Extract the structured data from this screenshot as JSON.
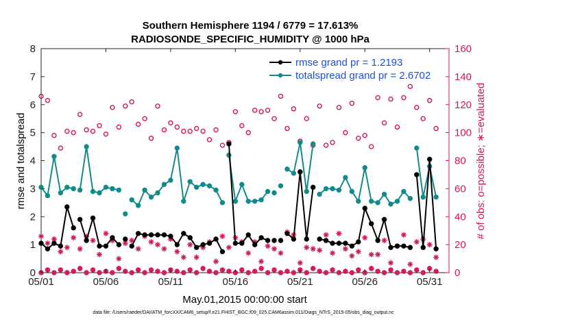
{
  "chart_data": {
    "type": "line",
    "title_line1": "Southern Hemisphere 1194 / 6779 = 17.613%",
    "title_line2": "RADIOSONDE_SPECIFIC_HUMIDITY @ 1000 hPa",
    "xlabel": "May.01,2015 00:00:00 start",
    "ylabel_left": "rmse and totalspread",
    "ylabel_right": "# of obs: o=possible; ∗=evaluated",
    "footer": "data file: /Users/raeder/DAI/ATM_forcXX/CAM6_setup/f.e21.FHIST_BGC.f09_025.CAM6assim.011/Diags_NTrS_2015-05/obs_diag_output.nc",
    "xlim": [
      0,
      31.5
    ],
    "ylim_left": [
      0,
      8
    ],
    "ylim_right": [
      0,
      160
    ],
    "x_ticks": [
      0,
      5,
      10,
      15,
      20,
      25,
      30
    ],
    "x_tick_labels": [
      "05/01",
      "05/06",
      "05/11",
      "05/16",
      "05/21",
      "05/26",
      "05/31"
    ],
    "y_ticks_left": [
      0,
      1,
      2,
      3,
      4,
      5,
      6,
      7,
      8
    ],
    "y_tick_labels_left": [
      "0",
      "1",
      "2",
      "3",
      "4",
      "5",
      "6",
      "7",
      "8"
    ],
    "y_ticks_right": [
      0,
      20,
      40,
      60,
      80,
      100,
      120,
      140,
      160
    ],
    "y_tick_labels_right": [
      "0",
      "20",
      "40",
      "60",
      "80",
      "100",
      "120",
      "140",
      "160"
    ],
    "colors": {
      "rmse": "#000000",
      "spread": "#138a8a",
      "obs": "#d4145a",
      "legend_text": "#1c4fd8"
    },
    "series": [
      {
        "name": "rmse grand pr = 1.2193",
        "axis": "left",
        "x": [
          0,
          0.5,
          1,
          1.5,
          2,
          2.5,
          3,
          3.5,
          4,
          4.5,
          5,
          5.5,
          6,
          6.5,
          7,
          7.5,
          8,
          8.5,
          9,
          9.5,
          10,
          10.5,
          11,
          11.5,
          12,
          12.5,
          13,
          13.5,
          14,
          14.5,
          15,
          15.5,
          16,
          16.5,
          17,
          17.5,
          18,
          18.5,
          19,
          19.5,
          20,
          20.5,
          21,
          21.5,
          22,
          22.5,
          23,
          23.5,
          24,
          24.5,
          25,
          25.5,
          26,
          26.5,
          27,
          27.5,
          28,
          28.5,
          29,
          29.5,
          30,
          30.5
        ],
        "values": [
          1.05,
          0.85,
          1.05,
          0.95,
          2.35,
          1.6,
          1.9,
          1.15,
          1.95,
          0.95,
          0.95,
          1.25,
          1.0,
          1.2,
          0.95,
          1.4,
          1.35,
          1.35,
          1.35,
          1.35,
          1.3,
          1.0,
          1.4,
          1.25,
          0.9,
          1.0,
          1.05,
          1.2,
          0.75,
          4.6,
          1.05,
          1.05,
          1.35,
          1.0,
          1.25,
          1.15,
          1.15,
          1.15,
          1.4,
          1.2,
          3.6,
          1.2,
          3.05,
          1.2,
          1.15,
          1.05,
          1.05,
          1.05,
          0.95,
          1.1,
          2.3,
          1.75,
          1.15,
          1.9,
          0.9,
          0.95,
          0.95,
          0.9,
          3.5,
          0.9,
          4.05,
          0.85
        ],
        "segments": [
          [
            0,
            6
          ],
          [
            6,
            13
          ],
          [
            14,
            29
          ],
          [
            29,
            36
          ],
          [
            38,
            43
          ],
          [
            43,
            58
          ],
          [
            58,
            62
          ]
        ]
      },
      {
        "name": "totalspread grand pr = 2.6702",
        "axis": "left",
        "x": [
          0,
          0.5,
          1,
          1.5,
          2,
          2.5,
          3,
          3.5,
          4,
          4.5,
          5,
          5.5,
          6,
          6.5,
          7,
          7.5,
          8,
          8.5,
          9,
          9.5,
          10,
          10.5,
          11,
          11.5,
          12,
          12.5,
          13,
          13.5,
          14,
          14.5,
          15,
          15.5,
          16,
          16.5,
          17,
          17.5,
          18,
          18.5,
          19,
          19.5,
          20,
          20.5,
          21,
          21.5,
          22,
          22.5,
          23,
          23.5,
          24,
          24.5,
          25,
          25.5,
          26,
          26.5,
          27,
          27.5,
          28,
          28.5,
          29,
          29.5,
          30,
          30.5
        ],
        "values": [
          3.05,
          2.75,
          4.15,
          2.85,
          3.05,
          3.0,
          2.95,
          4.5,
          2.9,
          2.85,
          3.05,
          3.0,
          2.95,
          2.1,
          2.6,
          2.4,
          2.95,
          2.7,
          2.85,
          3.15,
          3.3,
          4.45,
          2.55,
          3.25,
          3.05,
          3.15,
          3.1,
          2.95,
          2.5,
          4.2,
          2.55,
          3.15,
          2.55,
          2.55,
          2.6,
          2.9,
          2.85,
          3.1,
          3.7,
          3.55,
          4.65,
          2.9,
          4.6,
          2.8,
          3.0,
          3.0,
          2.95,
          3.4,
          2.9,
          2.55,
          3.75,
          2.55,
          2.5,
          2.8,
          2.45,
          2.55,
          2.9,
          2.65,
          4.45,
          2.7,
          3.8,
          2.7
        ],
        "segments": [
          [
            0,
            6
          ],
          [
            6,
            13
          ],
          [
            14,
            29
          ],
          [
            29,
            36
          ],
          [
            38,
            43
          ],
          [
            43,
            58
          ],
          [
            58,
            62
          ]
        ]
      },
      {
        "name": "obs possible",
        "axis": "right",
        "marker": "o",
        "x": [
          0,
          0.5,
          1,
          1.5,
          2,
          2.5,
          3,
          3.5,
          4,
          4.5,
          5,
          5.5,
          6,
          6.5,
          7,
          7.5,
          8,
          8.5,
          9,
          9.5,
          10,
          10.5,
          11,
          11.5,
          12,
          12.5,
          13,
          13.5,
          14,
          14.5,
          15,
          15.5,
          16,
          16.5,
          17,
          17.5,
          18,
          18.5,
          19,
          19.5,
          20,
          20.5,
          21,
          21.5,
          22,
          22.5,
          23,
          23.5,
          24,
          24.5,
          25,
          25.5,
          26,
          26.5,
          27,
          27.5,
          28,
          28.5,
          29,
          29.5,
          30,
          30.5
        ],
        "values": [
          126,
          123,
          98,
          89,
          101,
          100,
          113,
          102,
          101,
          105,
          99,
          118,
          104,
          119,
          122,
          106,
          110,
          96,
          119,
          102,
          107,
          104,
          101,
          101,
          103,
          101,
          95,
          102,
          91,
          93,
          115,
          105,
          100,
          116,
          115,
          116,
          110,
          126,
          103,
          117,
          94,
          110,
          91,
          119,
          91,
          93,
          118,
          100,
          121,
          96,
          98,
          90,
          125,
          107,
          124,
          104,
          125,
          133,
          118,
          110,
          123,
          103
        ]
      },
      {
        "name": "obs evaluated",
        "axis": "right",
        "marker": "*",
        "x": [
          0,
          0.5,
          1,
          1.5,
          2,
          2.5,
          3,
          3.5,
          4,
          4.5,
          5,
          5.5,
          6,
          6.5,
          7,
          7.5,
          8,
          8.5,
          9,
          9.5,
          10,
          10.5,
          11,
          11.5,
          12,
          12.5,
          13,
          13.5,
          14,
          14.5,
          15,
          15.5,
          16,
          16.5,
          17,
          17.5,
          18,
          18.5,
          19,
          19.5,
          20,
          20.5,
          21,
          21.5,
          22,
          22.5,
          23,
          23.5,
          24,
          24.5,
          25,
          25.5,
          26,
          26.5,
          27,
          27.5,
          28,
          28.5,
          29,
          29.5,
          30,
          30.5
        ],
        "values": [
          26,
          21,
          24,
          15,
          18,
          25,
          17,
          26,
          23,
          13,
          28,
          23,
          10,
          21,
          23,
          17,
          26,
          22,
          20,
          17,
          24,
          15,
          11,
          20,
          11,
          18,
          22,
          8,
          26,
          18,
          25,
          22,
          14,
          22,
          8,
          19,
          17,
          14,
          29,
          27,
          7,
          18,
          17,
          16,
          27,
          14,
          28,
          17,
          12,
          15,
          25,
          13,
          13,
          23,
          7,
          19,
          27,
          6,
          22,
          24,
          20,
          11
        ]
      },
      {
        "name": "obs baseline",
        "axis": "right",
        "marker": "o*",
        "x": [
          0,
          0.5,
          1,
          1.5,
          2,
          2.5,
          3,
          3.5,
          4,
          4.5,
          5,
          5.5,
          6,
          6.5,
          7,
          7.5,
          8,
          8.5,
          9,
          9.5,
          10,
          10.5,
          11,
          11.5,
          12,
          12.5,
          13,
          13.5,
          14,
          14.5,
          15,
          15.5,
          16,
          16.5,
          17,
          17.5,
          18,
          18.5,
          19,
          19.5,
          20,
          20.5,
          21,
          21.5,
          22,
          22.5,
          23,
          23.5,
          24,
          24.5,
          25,
          25.5,
          26,
          26.5,
          27,
          27.5,
          28,
          28.5,
          29,
          29.5,
          30,
          30.5
        ],
        "values": [
          0,
          2,
          0,
          2,
          0,
          1,
          3,
          0,
          2,
          0,
          1,
          0,
          3,
          1,
          0,
          2,
          0,
          2,
          1,
          0,
          2,
          1,
          0,
          2,
          0,
          3,
          1,
          0,
          2,
          1,
          0,
          2,
          0,
          1,
          3,
          0,
          2,
          0,
          1,
          0,
          2,
          0,
          3,
          1,
          0,
          2,
          0,
          1,
          0,
          2,
          0,
          3,
          1,
          0,
          2,
          0,
          1,
          0,
          2,
          0,
          3,
          1
        ]
      }
    ],
    "legend": [
      {
        "label": "rmse grand pr = 1.2193",
        "color": "#000000"
      },
      {
        "label": "totalspread grand pr = 2.6702",
        "color": "#138a8a"
      }
    ]
  }
}
